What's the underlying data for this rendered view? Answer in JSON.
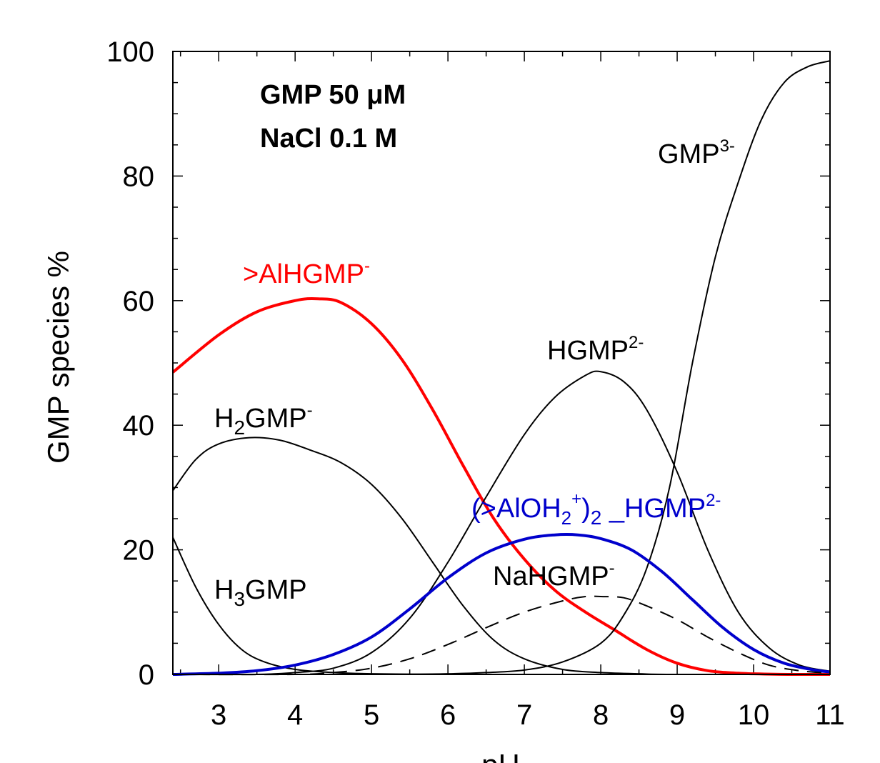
{
  "chart_data": {
    "type": "line",
    "xlabel": "pH",
    "ylabel": "GMP species %",
    "xlim": [
      2.4,
      11
    ],
    "ylim": [
      0,
      100
    ],
    "xticks": [
      "3",
      "4",
      "5",
      "6",
      "7",
      "8",
      "9",
      "10",
      "11"
    ],
    "yticks": [
      "0",
      "20",
      "40",
      "60",
      "80",
      "100"
    ],
    "annotations": [
      "GMP 50 μM",
      "NaCl 0.1 M"
    ],
    "series": [
      {
        "name": ">AlHGMP⁻",
        "color": "#ff0000",
        "style": "thick",
        "x": [
          2.4,
          3.0,
          3.5,
          4.0,
          4.3,
          4.6,
          5.0,
          5.4,
          5.8,
          6.2,
          6.6,
          7.0,
          7.4,
          7.8,
          8.2,
          8.6,
          9.0,
          9.4,
          9.8,
          10.0,
          10.5,
          11.0
        ],
        "y": [
          48.5,
          54.5,
          58.2,
          60.0,
          60.3,
          59.7,
          56.3,
          50.5,
          42.5,
          33.5,
          25.0,
          18.5,
          13.5,
          10.0,
          7.0,
          4.0,
          1.8,
          0.6,
          0.2,
          0.1,
          0.0,
          0.0
        ]
      },
      {
        "name": "H₂GMP⁻",
        "color": "#000000",
        "style": "thin",
        "x": [
          2.4,
          2.7,
          3.0,
          3.4,
          3.8,
          4.2,
          4.6,
          5.0,
          5.4,
          5.8,
          6.2,
          6.6,
          7.0,
          7.5,
          8.0,
          8.5,
          9.0,
          11.0
        ],
        "y": [
          29.5,
          34.5,
          37.0,
          38.0,
          37.6,
          36.0,
          34.0,
          30.5,
          25.0,
          18.0,
          11.0,
          5.5,
          2.5,
          0.8,
          0.3,
          0.1,
          0.0,
          0.0
        ]
      },
      {
        "name": "H₃GMP",
        "color": "#000000",
        "style": "thin",
        "x": [
          2.4,
          2.7,
          3.0,
          3.3,
          3.6,
          4.0,
          4.5,
          5.0,
          6.0,
          7.0,
          11.0
        ],
        "y": [
          22.0,
          14.0,
          8.0,
          4.0,
          2.0,
          0.8,
          0.3,
          0.1,
          0.0,
          0.0,
          0.0
        ]
      },
      {
        "name": "HGMP²⁻",
        "color": "#000000",
        "style": "thin",
        "x": [
          2.4,
          3.5,
          4.0,
          4.5,
          5.0,
          5.5,
          6.0,
          6.5,
          7.0,
          7.4,
          7.8,
          8.0,
          8.3,
          8.6,
          9.0,
          9.4,
          9.8,
          10.2,
          10.6,
          11.0
        ],
        "y": [
          0.0,
          0.0,
          0.3,
          1.0,
          3.5,
          9.0,
          18.0,
          28.5,
          38.5,
          44.5,
          48.0,
          48.6,
          47.0,
          42.5,
          32.5,
          20.0,
          10.0,
          4.3,
          1.5,
          0.5
        ]
      },
      {
        "name": "GMP³⁻",
        "color": "#000000",
        "style": "thin",
        "x": [
          2.4,
          5.0,
          6.0,
          6.5,
          7.0,
          7.5,
          8.0,
          8.3,
          8.6,
          8.9,
          9.2,
          9.5,
          9.8,
          10.1,
          10.4,
          10.7,
          11.0
        ],
        "y": [
          0.0,
          0.0,
          0.1,
          0.3,
          0.7,
          2.0,
          5.0,
          9.5,
          17.0,
          30.0,
          50.0,
          67.0,
          79.0,
          89.0,
          95.0,
          97.5,
          98.5
        ]
      },
      {
        "name": "(>AlOH₂⁺)₂_HGMP²⁻",
        "color": "#0000cc",
        "style": "thick",
        "x": [
          2.4,
          3.0,
          3.5,
          4.0,
          4.5,
          5.0,
          5.5,
          6.0,
          6.5,
          7.0,
          7.4,
          7.7,
          8.0,
          8.4,
          8.8,
          9.2,
          9.6,
          10.0,
          10.4,
          10.8,
          11.0
        ],
        "y": [
          0.0,
          0.2,
          0.6,
          1.5,
          3.2,
          6.0,
          10.5,
          15.5,
          19.5,
          21.7,
          22.4,
          22.4,
          21.8,
          20.0,
          16.5,
          12.0,
          7.5,
          4.0,
          1.8,
          0.7,
          0.4
        ]
      },
      {
        "name": "NaHGMP⁻",
        "color": "#000000",
        "style": "dashed",
        "x": [
          2.4,
          4.0,
          4.5,
          5.0,
          5.5,
          6.0,
          6.5,
          7.0,
          7.5,
          7.8,
          8.0,
          8.3,
          8.6,
          9.0,
          9.4,
          9.8,
          10.2,
          10.6,
          11.0
        ],
        "y": [
          0.0,
          0.0,
          0.3,
          1.0,
          2.5,
          4.8,
          7.5,
          10.0,
          11.8,
          12.5,
          12.5,
          12.3,
          11.0,
          8.8,
          6.0,
          3.5,
          1.5,
          0.6,
          0.2
        ]
      }
    ]
  },
  "labels": {
    "alhgmp": {
      "main": ">AlHGMP",
      "sup": "-"
    },
    "h2gmp": {
      "a": "H",
      "sub": "2",
      "b": "GMP",
      "sup": "-"
    },
    "h3gmp": {
      "a": "H",
      "sub": "3",
      "b": "GMP"
    },
    "hgmp": {
      "main": "HGMP",
      "sup": "2-"
    },
    "gmp3": {
      "main": "GMP",
      "sup": "3-"
    },
    "nahgmp": {
      "main": "NaHGMP",
      "sup": "-"
    },
    "aloh": {
      "a": "(>AlOH",
      "sub1": "2",
      "sup1": "+",
      "b": ")",
      "sub2": "2",
      "c": " _HGMP",
      "sup2": "2-"
    }
  }
}
